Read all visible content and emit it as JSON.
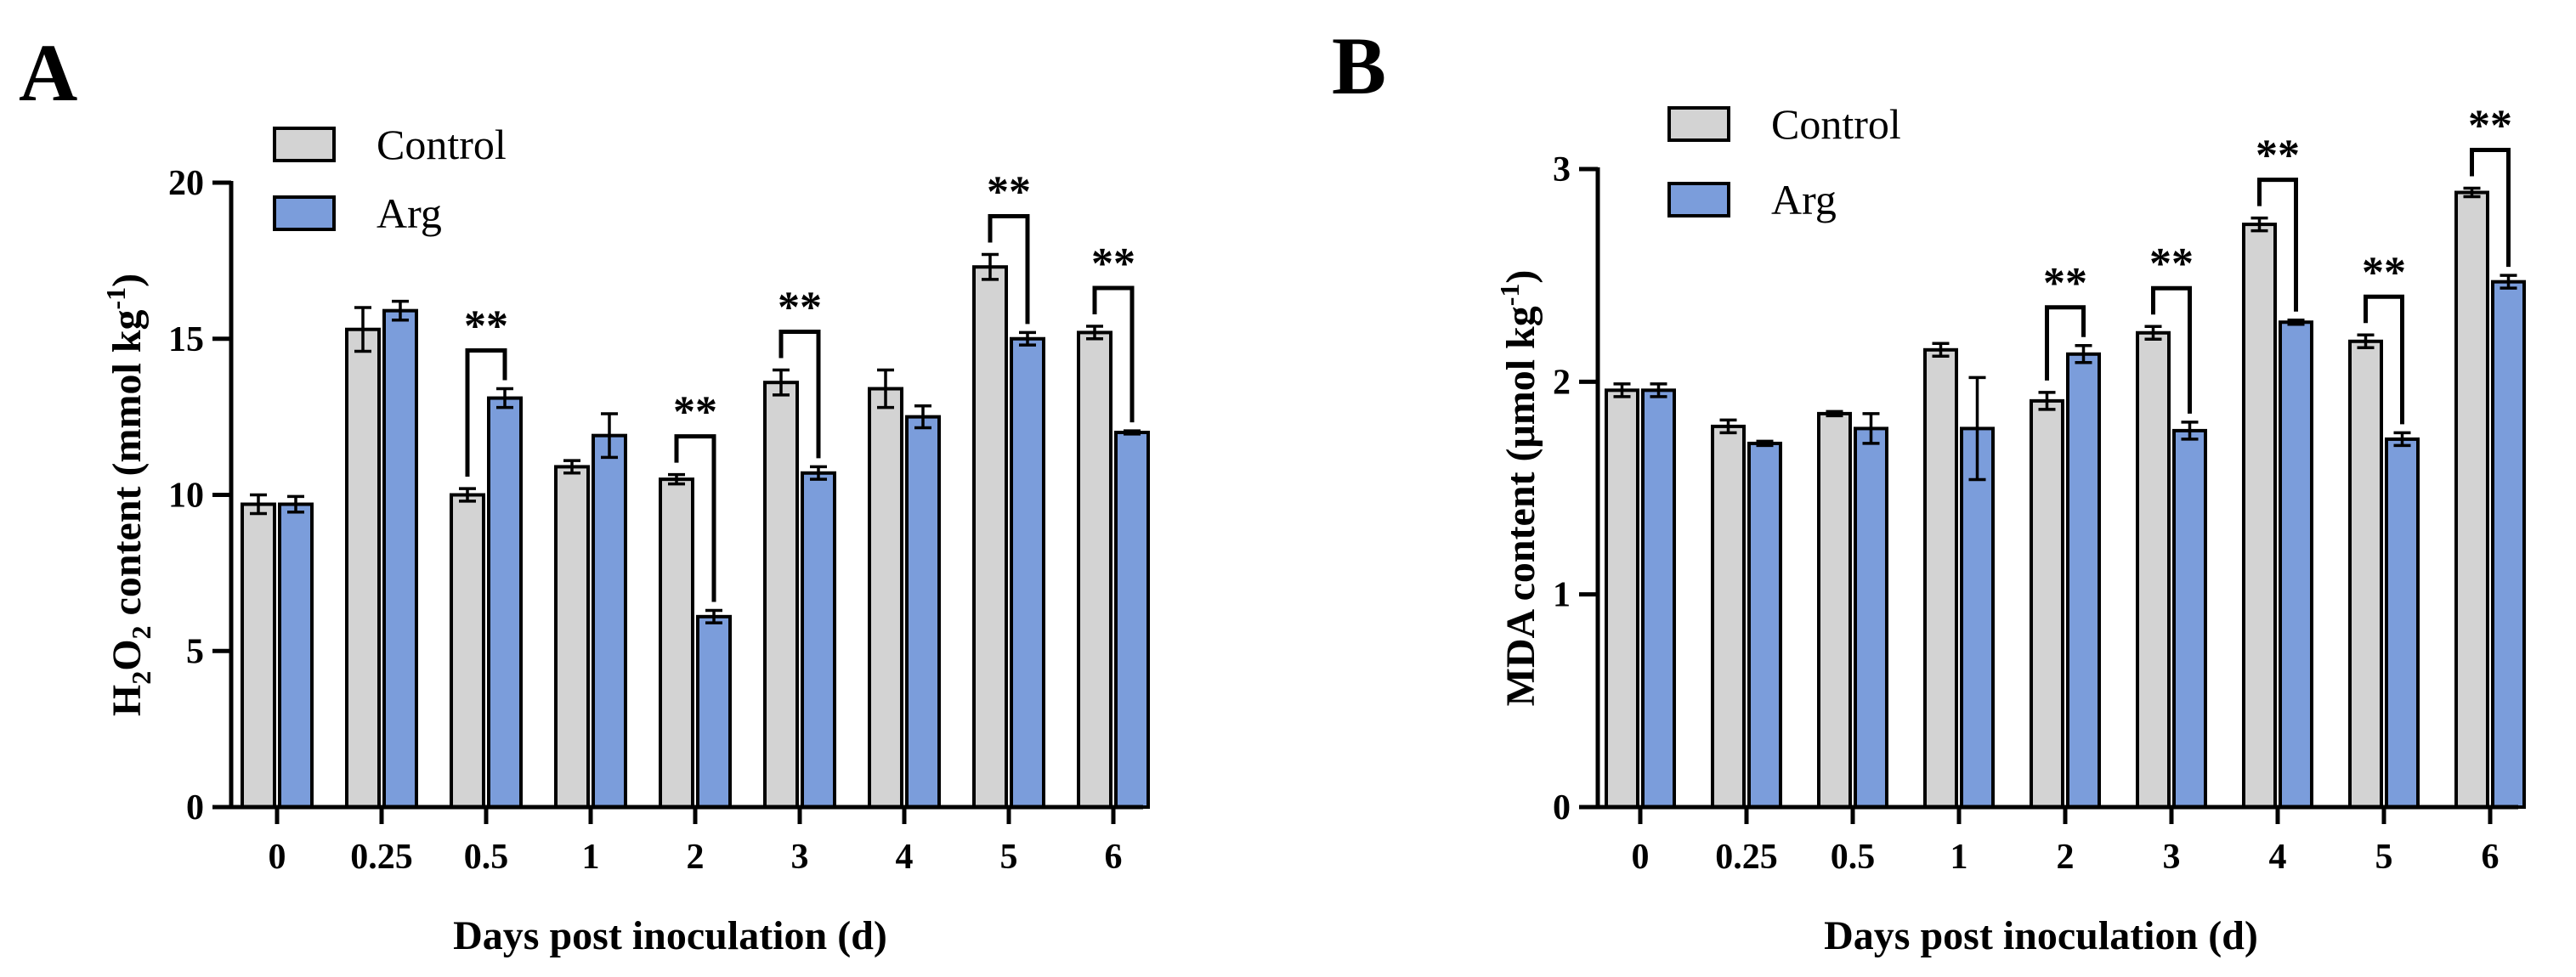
{
  "colors": {
    "control": "#d3d3d3",
    "arg": "#7b9ddb",
    "stroke": "#000000"
  },
  "chart_data": [
    {
      "panel": "A",
      "type": "bar",
      "categories": [
        "0",
        "0.25",
        "0.5",
        "1",
        "2",
        "3",
        "4",
        "5",
        "6"
      ],
      "series": [
        {
          "name": "Control",
          "values": [
            9.7,
            15.3,
            10.0,
            10.9,
            10.5,
            13.6,
            13.4,
            17.3,
            15.2
          ],
          "errors": [
            0.3,
            0.7,
            0.2,
            0.2,
            0.15,
            0.4,
            0.6,
            0.4,
            0.2
          ]
        },
        {
          "name": "Arg",
          "values": [
            9.7,
            15.9,
            13.1,
            11.9,
            6.1,
            10.7,
            12.5,
            15.0,
            12.0
          ],
          "errors": [
            0.25,
            0.3,
            0.3,
            0.7,
            0.2,
            0.2,
            0.35,
            0.2,
            0.05
          ]
        }
      ],
      "significance": [
        {
          "category": "0.5",
          "label": "**"
        },
        {
          "category": "2",
          "label": "**"
        },
        {
          "category": "3",
          "label": "**"
        },
        {
          "category": "5",
          "label": "**"
        },
        {
          "category": "6",
          "label": "**"
        }
      ],
      "yticks": [
        0,
        5,
        10,
        15,
        20
      ],
      "ylim": [
        0,
        20
      ],
      "xlabel": "Days post inoculation (d)",
      "ylabel": {
        "prefix": "H",
        "sub1": "2",
        "mid": "O",
        "sub2": "2",
        "main": " content (mmol kg",
        "sup": "-1",
        "close": ")"
      },
      "legend": [
        "Control",
        "Arg"
      ]
    },
    {
      "panel": "B",
      "type": "bar",
      "categories": [
        "0",
        "0.25",
        "0.5",
        "1",
        "2",
        "3",
        "4",
        "5",
        "6"
      ],
      "series": [
        {
          "name": "Control",
          "values": [
            1.96,
            1.79,
            1.85,
            2.15,
            1.91,
            2.23,
            2.74,
            2.19,
            2.89
          ],
          "errors": [
            0.03,
            0.03,
            0.01,
            0.03,
            0.04,
            0.03,
            0.03,
            0.03,
            0.02
          ]
        },
        {
          "name": "Arg",
          "values": [
            1.96,
            1.71,
            1.78,
            1.78,
            2.13,
            1.77,
            2.28,
            1.73,
            2.47
          ],
          "errors": [
            0.03,
            0.01,
            0.07,
            0.24,
            0.04,
            0.04,
            0.01,
            0.03,
            0.03
          ]
        }
      ],
      "significance": [
        {
          "category": "2",
          "label": "**"
        },
        {
          "category": "3",
          "label": "**"
        },
        {
          "category": "4",
          "label": "**"
        },
        {
          "category": "5",
          "label": "**"
        },
        {
          "category": "6",
          "label": "**"
        }
      ],
      "yticks": [
        0,
        1,
        2,
        3
      ],
      "ylim": [
        0,
        3
      ],
      "xlabel": "Days post inoculation (d)",
      "ylabel": {
        "main": "MDA content (μmol kg",
        "sup": "-1",
        "close": ")"
      },
      "legend": [
        "Control",
        "Arg"
      ]
    }
  ]
}
